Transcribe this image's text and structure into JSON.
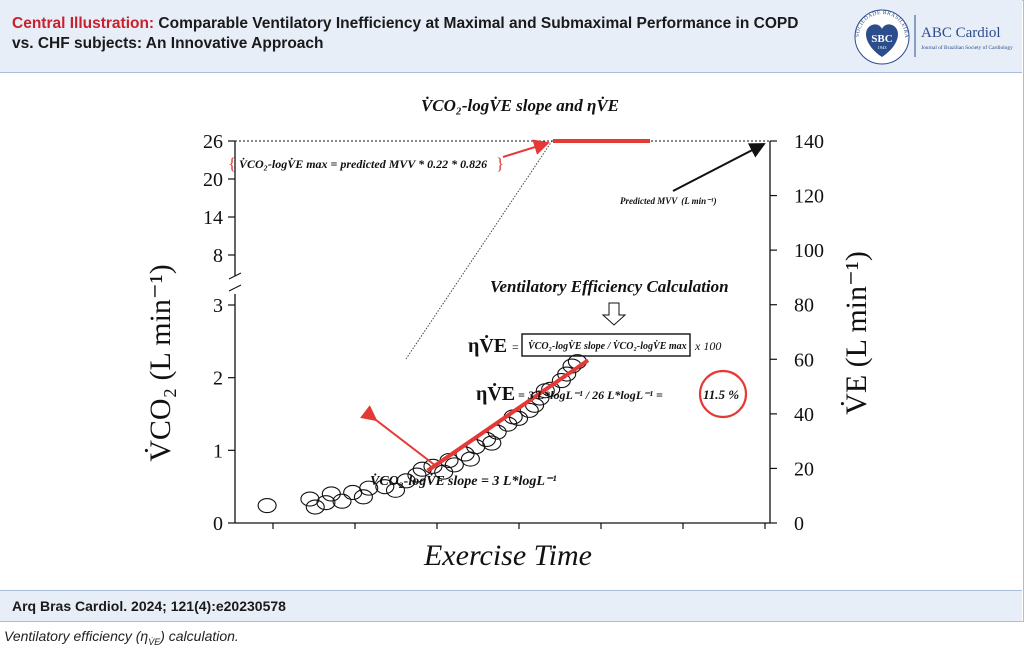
{
  "header": {
    "label": "Central Illustration:",
    "title": "Comparable Ventilatory Inefficiency at Maximal and Submaximal Performance in COPD vs. CHF subjects: An Innovative Approach",
    "logo_seal_text": "SOCIEDADE BRASILEIRA DE CARDIOLOGIA",
    "logo_abbr": "SBC",
    "logo_year": "1943",
    "brand_name": "ABC Cardiol",
    "brand_sub": "Journal of Brazilian Society of Cardiology",
    "colors": {
      "band": "#e7eef8",
      "border": "#a9bedd",
      "accent": "#c8212d",
      "logo_blue": "#2b4d8c"
    }
  },
  "footer": {
    "citation": "Arq Bras Cardiol. 2024; 121(4):e20230578",
    "caption_prefix": "Ventilatory efficiency (η",
    "caption_sub": "V̇E",
    "caption_suffix": ") calculation."
  },
  "chart_data": {
    "type": "scatter",
    "title": "V̇CO₂-logV̇E slope  and  ηV̇E",
    "xlabel": "Exercise Time",
    "ylabel_left": "V̇CO₂ (L min⁻¹)",
    "ylabel_right": "V̇E (L min⁻¹)",
    "y_left_ticks_lower": [
      "0",
      "1",
      "2",
      "3"
    ],
    "y_left_ticks_upper": [
      "8",
      "14",
      "20",
      "26"
    ],
    "y_right_ticks": [
      "0",
      "20",
      "40",
      "60",
      "80",
      "100",
      "120",
      "140"
    ],
    "y_left_lower_range": [
      0,
      3
    ],
    "y_right_range": [
      0,
      140
    ],
    "points": [
      [
        0.06,
        0.24
      ],
      [
        0.14,
        0.33
      ],
      [
        0.15,
        0.22
      ],
      [
        0.17,
        0.28
      ],
      [
        0.18,
        0.4
      ],
      [
        0.2,
        0.3
      ],
      [
        0.22,
        0.42
      ],
      [
        0.24,
        0.36
      ],
      [
        0.25,
        0.48
      ],
      [
        0.28,
        0.5
      ],
      [
        0.3,
        0.45
      ],
      [
        0.32,
        0.58
      ],
      [
        0.34,
        0.66
      ],
      [
        0.35,
        0.74
      ],
      [
        0.37,
        0.78
      ],
      [
        0.39,
        0.7
      ],
      [
        0.4,
        0.86
      ],
      [
        0.41,
        0.8
      ],
      [
        0.43,
        0.95
      ],
      [
        0.44,
        0.88
      ],
      [
        0.45,
        1.05
      ],
      [
        0.47,
        1.15
      ],
      [
        0.48,
        1.1
      ],
      [
        0.49,
        1.25
      ],
      [
        0.51,
        1.36
      ],
      [
        0.52,
        1.46
      ],
      [
        0.53,
        1.44
      ],
      [
        0.55,
        1.55
      ],
      [
        0.56,
        1.62
      ],
      [
        0.57,
        1.72
      ],
      [
        0.58,
        1.82
      ],
      [
        0.59,
        1.84
      ],
      [
        0.61,
        1.96
      ],
      [
        0.62,
        2.05
      ],
      [
        0.63,
        2.16
      ],
      [
        0.64,
        2.22
      ]
    ],
    "slope_line": {
      "x": [
        0.36,
        0.66
      ],
      "y": [
        0.72,
        2.24
      ]
    },
    "annotations": {
      "max_formula_pre": "V̇CO₂-logV̇E",
      "max_formula_post": "max = predicted MVV * 0.22 * 0.826",
      "predicted_mvv": "Predicted MVV",
      "predicted_mvv_unit": "(L min⁻¹)",
      "calc_title": "Ventilatory Efficiency Calculation",
      "eff_symbol": "ηV̇E",
      "eff_formula_eq": "=",
      "eff_formula_body": "V̇CO₂-logV̇E slope / V̇CO₂-logV̇E max",
      "eff_formula_mult": "x 100",
      "eff_result_pre": "= 3 L*logL⁻¹ / 26 L*logL⁻¹ =",
      "eff_result_value": "11.5 %",
      "slope_text_pre": "V̇CO₂-logV̇E",
      "slope_text_post": "slope = 3 L*logL⁻¹"
    },
    "colors": {
      "highlight": "#e53935",
      "markers": "#111111"
    }
  }
}
